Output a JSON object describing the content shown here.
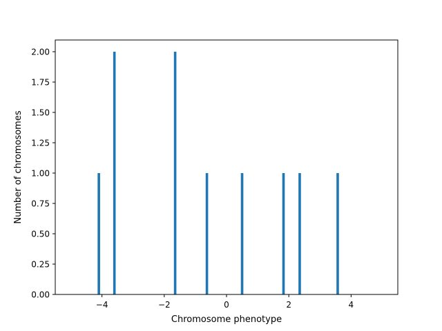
{
  "chart_data": {
    "type": "bar",
    "xlabel": "Chromosome phenotype",
    "ylabel": "Number of chromosomes",
    "xlim": [
      -5.5,
      5.5
    ],
    "ylim": [
      0,
      2.0
    ],
    "xticks": [
      -4,
      -2,
      0,
      2,
      4
    ],
    "xtick_labels": [
      "−4",
      "−2",
      "0",
      "2",
      "4"
    ],
    "yticks": [
      0,
      0.25,
      0.5,
      0.75,
      1.0,
      1.25,
      1.5,
      1.75,
      2.0
    ],
    "ytick_labels": [
      "0.00",
      "0.25",
      "0.50",
      "0.75",
      "1.00",
      "1.25",
      "1.50",
      "1.75",
      "2.00"
    ],
    "bar_width": 0.08,
    "bars": [
      {
        "x": -4.1,
        "value": 1
      },
      {
        "x": -3.6,
        "value": 2
      },
      {
        "x": -1.65,
        "value": 2
      },
      {
        "x": -0.63,
        "value": 1
      },
      {
        "x": 0.5,
        "value": 1
      },
      {
        "x": 1.83,
        "value": 1
      },
      {
        "x": 2.35,
        "value": 1
      },
      {
        "x": 3.57,
        "value": 1
      }
    ],
    "grid": false,
    "bar_color": "#1f77b4"
  }
}
